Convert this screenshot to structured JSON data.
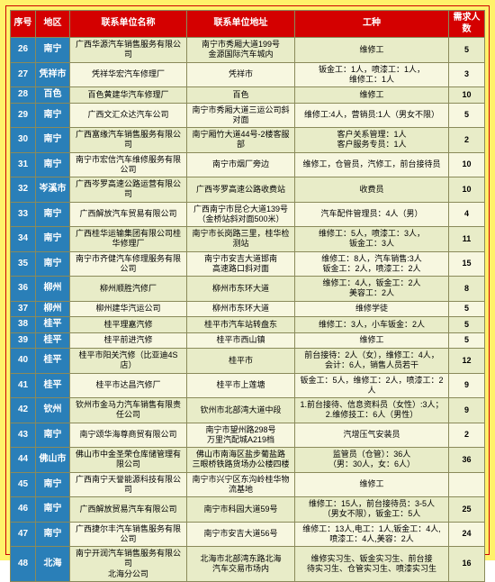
{
  "colors": {
    "page_bg": "#fff26a",
    "header_bg": "#d40000",
    "seq_area_bg": "#2a7fb8",
    "row_odd_bg": "#e8ecc8",
    "row_even_bg": "#f7f7e0",
    "border": "#8a8a5a",
    "outer_border": "#cc0000"
  },
  "headers": [
    "序号",
    "地区",
    "联系单位名称",
    "联系单位地址",
    "工种",
    "需求人数"
  ],
  "rows": [
    {
      "seq": "26",
      "area": "南宁",
      "name": "广西华源汽车销售服务有限公司",
      "addr": "南宁市秀厢大道199号\n金源国际汽车城内",
      "job": "维修工",
      "count": "5"
    },
    {
      "seq": "27",
      "area": "凭祥市",
      "name": "凭祥华宏汽车修理厂",
      "addr": "凭祥市",
      "job": "钣金工：1人，喷漆工：1人，\n维修工：1人",
      "count": "3"
    },
    {
      "seq": "28",
      "area": "百色",
      "name": "百色黄建华汽车修理厂",
      "addr": "百色",
      "job": "维修工",
      "count": "10"
    },
    {
      "seq": "29",
      "area": "南宁",
      "name": "广西文汇众达汽车公司",
      "addr": "南宁市秀厢大道三运公司斜对面",
      "job": "维修工:4人，营销员:1人（男女不限）",
      "count": "5"
    },
    {
      "seq": "30",
      "area": "南宁",
      "name": "广西富缘汽车销售服务有限公司",
      "addr": "南宁厢竹大道44号-2楼客服部",
      "job": "客户关系管理：1人\n客户服务专员：1人",
      "count": "2"
    },
    {
      "seq": "31",
      "area": "南宁",
      "name": "南宁市宏信汽车维修服务有限公司",
      "addr": "南宁市烟厂旁边",
      "job": "维修工，仓管员，汽修工，前台接待员",
      "count": "10"
    },
    {
      "seq": "32",
      "area": "岑溪市",
      "name": "广西岑罗高速公路运营有限公司",
      "addr": "广西岑罗高速公路收费站",
      "job": "收费员",
      "count": "10"
    },
    {
      "seq": "33",
      "area": "南宁",
      "name": "广西解放汽车贸易有限公司",
      "addr": "广西南宁市昆仑大道139号\n（金桥站斜对面500米）",
      "job": "汽车配件管理员：4人（男）",
      "count": "4"
    },
    {
      "seq": "34",
      "area": "南宁",
      "name": "广西桂华运输集团有限公司桂华修理厂",
      "addr": "南宁市长岗路三里，桂华检测站",
      "job": "维修工：5人，喷漆工：3人，\n钣金工：3人",
      "count": "11"
    },
    {
      "seq": "35",
      "area": "南宁",
      "name": "南宁市齐健汽车修理服务有限公司",
      "addr": "南宁市安吉大道邯南\n高速路口斜对面",
      "job": "维修工：8人，汽车销售:3人\n钣金工：2人，喷漆工：2人",
      "count": "15"
    },
    {
      "seq": "36",
      "area": "柳州",
      "name": "柳州顺胜汽修厂",
      "addr": "柳州市东环大道",
      "job": "维修工：4人，钣金工：2人\n美容工：2人",
      "count": "8"
    },
    {
      "seq": "37",
      "area": "柳州",
      "name": "柳州建华汽运公司",
      "addr": "柳州市东环大道",
      "job": "维修学徒",
      "count": "5"
    },
    {
      "seq": "38",
      "area": "桂平",
      "name": "桂平理嘉汽修",
      "addr": "桂平市汽车站转盘东",
      "job": "维修工：3人，小车钣金：2人",
      "count": "5"
    },
    {
      "seq": "39",
      "area": "桂平",
      "name": "桂平前进汽修",
      "addr": "桂平市西山镇",
      "job": "维修工",
      "count": "5"
    },
    {
      "seq": "40",
      "area": "桂平",
      "name": "桂平市阳关汽修（比亚迪4S店）",
      "addr": "桂平市",
      "job": "前台接待：2人（女），维修工：4人，\n会计：6人，销售人员若干",
      "count": "12"
    },
    {
      "seq": "41",
      "area": "桂平",
      "name": "桂平市达昌汽修厂",
      "addr": "桂平市上莲塘",
      "job": "钣金工：5人，维修工：2人，喷漆工：2人",
      "count": "9"
    },
    {
      "seq": "42",
      "area": "钦州",
      "name": "钦州市金马力汽车销售有限责任公司",
      "addr": "钦州市北部湾大道中段",
      "job": "1.前台接待、信息资料员（女性）:3人；\n2.维修技工：6人（男性）",
      "count": "9"
    },
    {
      "seq": "43",
      "area": "南宁",
      "name": "南宁颂华海尊商贸有限公司",
      "addr": "南宁市望州路298号\n万里汽配城A219档",
      "job": "汽增压气安装员",
      "count": "2"
    },
    {
      "seq": "44",
      "area": "佛山市",
      "name": "佛山市中金圣荣仓库储管理有限公司",
      "addr": "佛山市南海区盐步葡盐路\n三眼桥铁路货场办公楼四楼",
      "job": "监管员（仓管）：36人\n（男：30人，女：6人）",
      "count": "36"
    },
    {
      "seq": "45",
      "area": "南宁",
      "name": "广西南宁天誉能源科技有限公司",
      "addr": "南宁市兴宁区东沟岭桂华物流基地",
      "job": "维修工",
      "count": ""
    },
    {
      "seq": "46",
      "area": "南宁",
      "name": "广西解放贸易汽车有限公司",
      "addr": "南宁市科园大道59号",
      "job": "维修工：15人，前台接待员：3-5人\n（男女不限），钣金工：5人",
      "count": "25"
    },
    {
      "seq": "47",
      "area": "南宁",
      "name": "广西捷尔丰汽车销售服务有限公司",
      "addr": "南宁市安吉大道56号",
      "job": "维修工：13人,电工：1人,钣金工：4人,\n喷漆工：4人,美容：2人",
      "count": "24"
    },
    {
      "seq": "48",
      "area": "北海",
      "name": "南宁开润汽车销售服务有限公司\n北海分公司",
      "addr": "北海市北部湾东路北海\n汽车交易市场内",
      "job": "维修实习生、钣金实习生、前台接\n待实习生、仓管实习生、喷漆实习生",
      "count": "16"
    }
  ]
}
